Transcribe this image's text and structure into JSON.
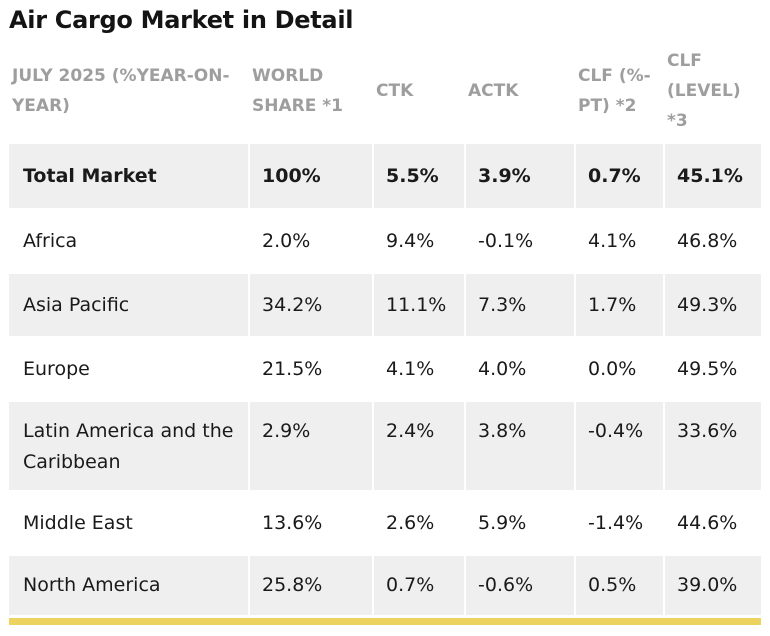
{
  "title": "Air Cargo Market in Detail",
  "table": {
    "headers": [
      "JULY 2025 (%YEAR-ON-YEAR)",
      "WORLD SHARE *1",
      "CTK",
      "ACTK",
      "CLF (%-PT) *2",
      "CLF (LEVEL) *3"
    ],
    "rows": [
      [
        "Total Market",
        "100%",
        "5.5%",
        "3.9%",
        "0.7%",
        "45.1%"
      ],
      [
        "Africa",
        "2.0%",
        "9.4%",
        "-0.1%",
        "4.1%",
        "46.8%"
      ],
      [
        "Asia Pacific",
        "34.2%",
        "11.1%",
        "7.3%",
        "1.7%",
        "49.3%"
      ],
      [
        "Europe",
        "21.5%",
        "4.1%",
        "4.0%",
        "0.0%",
        "49.5%"
      ],
      [
        "Latin America and the Caribbean",
        "2.9%",
        "2.4%",
        "3.8%",
        "-0.4%",
        "33.6%"
      ],
      [
        "Middle East",
        "13.6%",
        "2.6%",
        "5.9%",
        "-1.4%",
        "44.6%"
      ],
      [
        "North America",
        "25.8%",
        "0.7%",
        "-0.6%",
        "0.5%",
        "39.0%"
      ]
    ]
  },
  "colors": {
    "header_text": "#9e9e9e",
    "row_shade": "#efefef",
    "accent": "#ecd35f"
  }
}
